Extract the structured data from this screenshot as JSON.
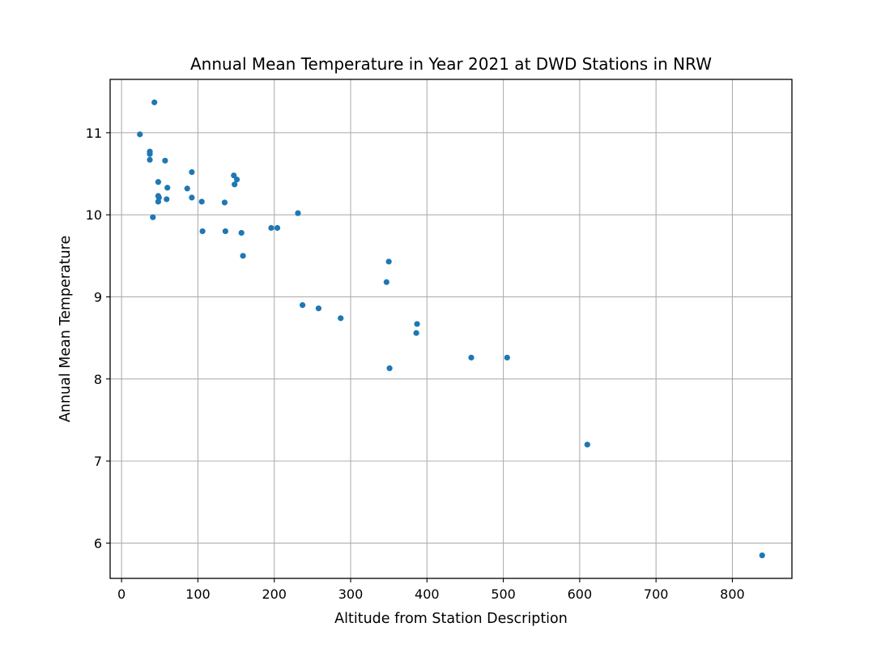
{
  "chart_data": {
    "type": "scatter",
    "title": "Annual Mean Temperature in Year 2021 at DWD Stations in NRW",
    "xlabel": "Altitude from Station Description",
    "ylabel": "Annual Mean Temperature",
    "xlim": [
      -15,
      878
    ],
    "ylim": [
      5.57,
      11.65
    ],
    "x_ticks": [
      0,
      100,
      200,
      300,
      400,
      500,
      600,
      700,
      800
    ],
    "y_ticks": [
      6,
      7,
      8,
      9,
      10,
      11
    ],
    "grid": true,
    "marker_color": "#1f77b4",
    "points": [
      {
        "x": 24,
        "y": 10.98
      },
      {
        "x": 43,
        "y": 11.37
      },
      {
        "x": 37,
        "y": 10.77
      },
      {
        "x": 37,
        "y": 10.74
      },
      {
        "x": 37,
        "y": 10.67
      },
      {
        "x": 57,
        "y": 10.66
      },
      {
        "x": 48,
        "y": 10.4
      },
      {
        "x": 60,
        "y": 10.33
      },
      {
        "x": 48,
        "y": 10.23
      },
      {
        "x": 49,
        "y": 10.21
      },
      {
        "x": 48,
        "y": 10.16
      },
      {
        "x": 59,
        "y": 10.19
      },
      {
        "x": 41,
        "y": 9.97
      },
      {
        "x": 86,
        "y": 10.32
      },
      {
        "x": 92,
        "y": 10.52
      },
      {
        "x": 92,
        "y": 10.21
      },
      {
        "x": 105,
        "y": 10.16
      },
      {
        "x": 106,
        "y": 9.8
      },
      {
        "x": 135,
        "y": 10.15
      },
      {
        "x": 136,
        "y": 9.8
      },
      {
        "x": 147,
        "y": 10.48
      },
      {
        "x": 151,
        "y": 10.43
      },
      {
        "x": 148,
        "y": 10.37
      },
      {
        "x": 157,
        "y": 9.78
      },
      {
        "x": 159,
        "y": 9.5
      },
      {
        "x": 196,
        "y": 9.84
      },
      {
        "x": 204,
        "y": 9.84
      },
      {
        "x": 231,
        "y": 10.02
      },
      {
        "x": 237,
        "y": 8.9
      },
      {
        "x": 258,
        "y": 8.86
      },
      {
        "x": 287,
        "y": 8.74
      },
      {
        "x": 347,
        "y": 9.18
      },
      {
        "x": 350,
        "y": 9.43
      },
      {
        "x": 351,
        "y": 8.13
      },
      {
        "x": 387,
        "y": 8.67
      },
      {
        "x": 386,
        "y": 8.56
      },
      {
        "x": 458,
        "y": 8.26
      },
      {
        "x": 505,
        "y": 8.26
      },
      {
        "x": 610,
        "y": 7.2
      },
      {
        "x": 839,
        "y": 5.85
      }
    ]
  }
}
